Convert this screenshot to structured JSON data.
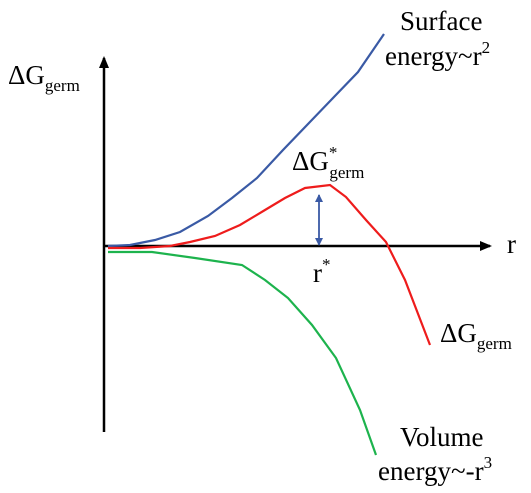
{
  "labels": {
    "y_axis": {
      "delta": "ΔG",
      "sub": "germ"
    },
    "x_axis": "r",
    "surface": {
      "line1": "Surface",
      "line2_base": "energy~r",
      "line2_sup": "2"
    },
    "volume": {
      "line1": "Volume",
      "line2_base": "energy~-r",
      "line2_sup": "3"
    },
    "barrier": {
      "delta": "ΔG",
      "sup": "*",
      "sub": "germ"
    },
    "critical_radius": {
      "base": "r",
      "sup": "*"
    },
    "total_curve": {
      "delta": "ΔG",
      "sub": "germ"
    }
  },
  "colors": {
    "axis": "#000000",
    "surface_curve": "#3a5aa5",
    "volume_curve": "#1db34d",
    "total_curve": "#ee1c1c",
    "barrier_arrow": "#3a5aa5"
  }
}
